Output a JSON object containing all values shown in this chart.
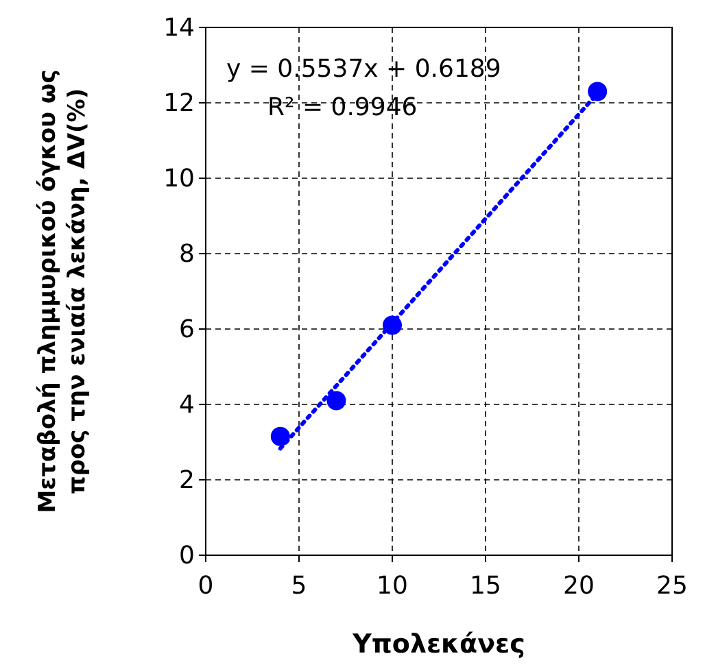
{
  "chart_data": {
    "type": "scatter",
    "xlabel": "Υπολεκάνες",
    "ylabel": "Μεταβολή πλημμυρικού όγκου ως\nπρος την ενιαία λεκάνη, ΔV(%)",
    "annotations": [
      "y = 0.5537x + 0.6189",
      "R² = 0.9946"
    ],
    "series": [
      {
        "color": "#0000ff",
        "x": [
          4,
          7,
          10,
          21
        ],
        "values": [
          3.15,
          4.1,
          6.1,
          12.3
        ],
        "marker": "circle"
      },
      {
        "type": "line",
        "color": "#0000ff",
        "x": [
          4,
          21
        ],
        "values": [
          2.83,
          12.25
        ],
        "marker": "none",
        "line_style": "dotted"
      }
    ],
    "xlim": [
      0,
      25
    ],
    "xticks": [
      0,
      5,
      10,
      15,
      20,
      25
    ],
    "ylim": [
      0,
      14
    ],
    "yticks": [
      0,
      2,
      4,
      6,
      8,
      10,
      12,
      14
    ],
    "grid": true
  }
}
